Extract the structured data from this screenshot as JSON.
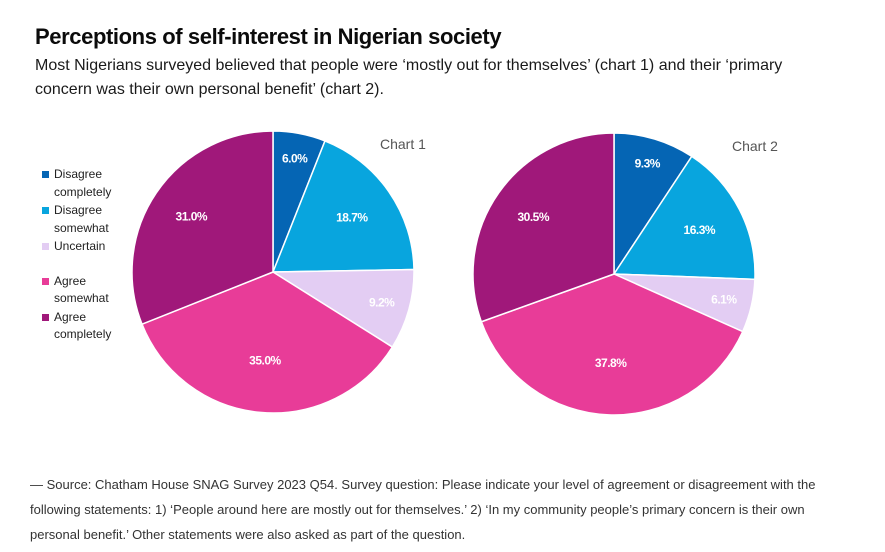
{
  "header": {
    "title": "Perceptions of self-interest in Nigerian society",
    "subtitle": "Most Nigerians surveyed believed that people were ‘mostly out for themselves’ (chart 1) and their ‘primary concern was their own personal benefit’ (chart 2)."
  },
  "legend": {
    "items": [
      {
        "label": "Disagree completely",
        "color": "#0565b4"
      },
      {
        "label": "Disagree somewhat",
        "color": "#08a5de"
      },
      {
        "label": "Uncertain",
        "color": "#e3cdf3"
      },
      {
        "label": "Agree somewhat",
        "color": "#e83c98"
      },
      {
        "label": "Agree completely",
        "color": "#a0187a"
      }
    ]
  },
  "chart_data": [
    {
      "type": "pie",
      "title": "Chart 1",
      "categories": [
        "Disagree completely",
        "Disagree somewhat",
        "Uncertain",
        "Agree somewhat",
        "Agree completely"
      ],
      "values": [
        6.0,
        18.7,
        9.2,
        35.0,
        31.0
      ],
      "labels": [
        "6.0%",
        "18.7%",
        "9.2%",
        "35.0%",
        "31.0%"
      ],
      "start_angle": "12 o'clock, clockwise",
      "legend": "left"
    },
    {
      "type": "pie",
      "title": "Chart 2",
      "categories": [
        "Disagree completely",
        "Disagree somewhat",
        "Uncertain",
        "Agree somewhat",
        "Agree completely"
      ],
      "values": [
        9.3,
        16.3,
        6.1,
        37.8,
        30.5
      ],
      "labels": [
        "9.3%",
        "16.3%",
        "6.1%",
        "37.8%",
        "30.5%"
      ],
      "start_angle": "12 o'clock, clockwise",
      "legend": "left"
    }
  ],
  "source": "— Source: Chatham House SNAG Survey 2023 Q54. Survey question: Please indicate your level of agreement or disagreement with the following statements: 1) ‘People around here are mostly out for themselves.’ 2) ‘In my community people’s primary concern is their own personal benefit.’  Other statements were also asked as part of the question."
}
